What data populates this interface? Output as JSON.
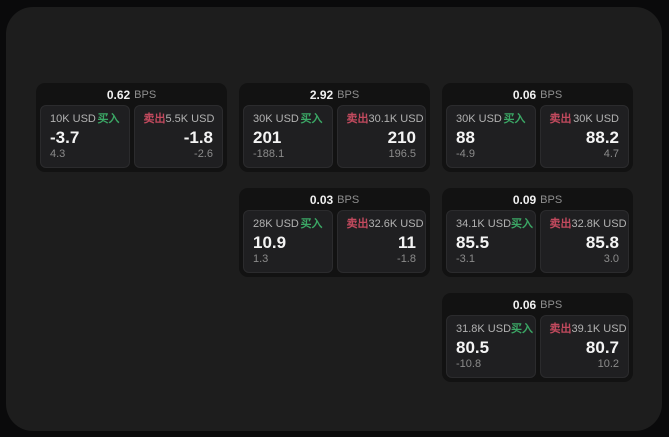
{
  "labels": {
    "bps": "BPS",
    "buy": "买入",
    "sell": "卖出"
  },
  "colors": {
    "buy": "#3ba765",
    "sell": "#c24a5e"
  },
  "cards": [
    {
      "row": 1,
      "col": 1,
      "bps": "0.62",
      "buy": {
        "amount": "10K USD",
        "price": "-3.7",
        "delta": "4.3"
      },
      "sell": {
        "amount": "5.5K USD",
        "price": "-1.8",
        "delta": "-2.6"
      }
    },
    {
      "row": 1,
      "col": 2,
      "bps": "2.92",
      "buy": {
        "amount": "30K USD",
        "price": "201",
        "delta": "-188.1"
      },
      "sell": {
        "amount": "30.1K USD",
        "price": "210",
        "delta": "196.5"
      }
    },
    {
      "row": 1,
      "col": 3,
      "bps": "0.06",
      "buy": {
        "amount": "30K USD",
        "price": "88",
        "delta": "-4.9"
      },
      "sell": {
        "amount": "30K USD",
        "price": "88.2",
        "delta": "4.7"
      }
    },
    {
      "row": 2,
      "col": 2,
      "bps": "0.03",
      "buy": {
        "amount": "28K USD",
        "price": "10.9",
        "delta": "1.3"
      },
      "sell": {
        "amount": "32.6K USD",
        "price": "11",
        "delta": "-1.8"
      }
    },
    {
      "row": 2,
      "col": 3,
      "bps": "0.09",
      "buy": {
        "amount": "34.1K USD",
        "price": "85.5",
        "delta": "-3.1"
      },
      "sell": {
        "amount": "32.8K USD",
        "price": "85.8",
        "delta": "3.0"
      }
    },
    {
      "row": 3,
      "col": 3,
      "bps": "0.06",
      "buy": {
        "amount": "31.8K USD",
        "price": "80.5",
        "delta": "-10.8"
      },
      "sell": {
        "amount": "39.1K USD",
        "price": "80.7",
        "delta": "10.2"
      }
    }
  ]
}
